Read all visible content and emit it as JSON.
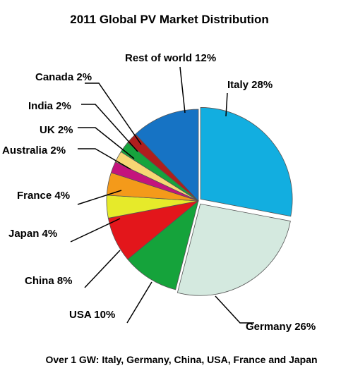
{
  "chart_data": {
    "type": "pie",
    "title": "2011 Global PV Market Distribution",
    "footnote": "Over 1 GW: Italy, Germany, China, USA, France and Japan",
    "slices": [
      {
        "name": "Italy",
        "value": 28,
        "label": "Italy 28%",
        "color": "#12aee0"
      },
      {
        "name": "Germany",
        "value": 26,
        "label": "Germany 26%",
        "color": "#d4e9df"
      },
      {
        "name": "USA",
        "value": 10,
        "label": "USA 10%",
        "color": "#15a33b"
      },
      {
        "name": "China",
        "value": 8,
        "label": "China 8%",
        "color": "#e3161b"
      },
      {
        "name": "Japan",
        "value": 4,
        "label": "Japan 4%",
        "color": "#e6ea2a"
      },
      {
        "name": "France",
        "value": 4,
        "label": "France 4%",
        "color": "#f49a1a"
      },
      {
        "name": "Australia",
        "value": 2,
        "label": "Australia 2%",
        "color": "#c4137d"
      },
      {
        "name": "UK",
        "value": 2,
        "label": "UK 2%",
        "color": "#f7d774"
      },
      {
        "name": "India",
        "value": 2,
        "label": "India 2%",
        "color": "#16a43d"
      },
      {
        "name": "Canada",
        "value": 2,
        "label": "Canada 2%",
        "color": "#b01e1e"
      },
      {
        "name": "Rest of world",
        "value": 12,
        "label": "Rest of world 12%",
        "color": "#1673c4"
      }
    ]
  }
}
